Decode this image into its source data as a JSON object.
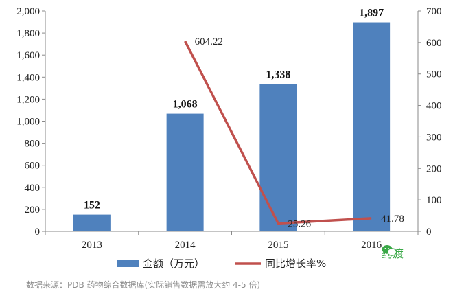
{
  "chart_data": {
    "type": "bar",
    "categories": [
      "2013",
      "2014",
      "2015",
      "2016"
    ],
    "series": [
      {
        "name": "金额（万元）",
        "type": "bar",
        "axis": "left",
        "values": [
          152,
          1068,
          1338,
          1897
        ],
        "labels": [
          "152",
          "1,068",
          "1,338",
          "1,897"
        ],
        "color": "#4f81bd"
      },
      {
        "name": "同比增长率%",
        "type": "line",
        "axis": "right",
        "values": [
          null,
          604.22,
          25.26,
          41.78
        ],
        "labels": [
          "",
          "604.22",
          "25.26",
          "41.78"
        ],
        "color": "#c0504d"
      }
    ],
    "y_left": {
      "ylim": [
        0,
        2000
      ],
      "ticks": [
        0,
        200,
        400,
        600,
        800,
        1000,
        1200,
        1400,
        1600,
        1800,
        2000
      ],
      "tick_labels": [
        "0",
        "200",
        "400",
        "600",
        "800",
        "1,000",
        "1,200",
        "1,400",
        "1,600",
        "1,800",
        "2,000"
      ]
    },
    "y_right": {
      "ylim": [
        0,
        700
      ],
      "ticks": [
        0,
        100,
        200,
        300,
        400,
        500,
        600,
        700
      ],
      "tick_labels": [
        "0",
        "100",
        "200",
        "300",
        "400",
        "500",
        "600",
        "700"
      ]
    },
    "grid": false,
    "legend_position": "bottom"
  },
  "source_note": "数据来源：PDB 药物综合数据库(实际销售数据需放大约 4-5 倍)",
  "watermark": "药渡"
}
